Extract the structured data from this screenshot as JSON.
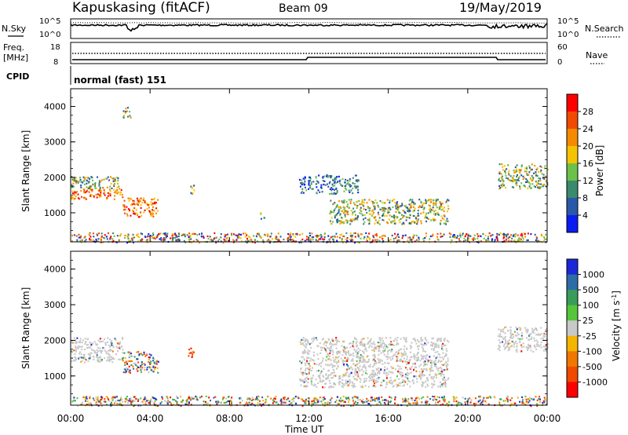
{
  "header": {
    "site": "Kapuskasing (fitACF)",
    "beam": "Beam 09",
    "date": "19/May/2019"
  },
  "noise_panel": {
    "left_label": "N.Sky",
    "right_label": "N.Search",
    "left_ticks": [
      "10^5",
      "10^0"
    ],
    "right_ticks": [
      "10^5",
      "10^0"
    ]
  },
  "freq_panel": {
    "left_label_1": "Freq.",
    "left_label_2": "[MHz]",
    "left_ticks": [
      "18",
      "8"
    ],
    "right_label": "Nave",
    "right_ticks": [
      "60",
      "0"
    ]
  },
  "cpid_panel": {
    "label": "CPID",
    "value": "normal (fast) 151"
  },
  "x_axis": {
    "label": "Time UT",
    "ticks": [
      "00:00",
      "04:00",
      "08:00",
      "12:00",
      "16:00",
      "20:00",
      "00:00"
    ]
  },
  "chart_data": [
    {
      "type": "heatmap",
      "name": "Power",
      "ylabel": "Slant Range [km]",
      "ylim": [
        180,
        4500
      ],
      "y_ticks": [
        1000,
        2000,
        3000,
        4000
      ],
      "xlim_hours": [
        0,
        24
      ],
      "colorbar": {
        "label": "Power [dB]",
        "ticks": [
          "28",
          "24",
          "20",
          "16",
          "12",
          "8",
          "4"
        ],
        "colors": [
          "#ff0000",
          "#f24a00",
          "#f58a00",
          "#f5c400",
          "#6cc14a",
          "#3a8a6e",
          "#2a58a8",
          "#0a1cf0"
        ]
      },
      "regions": [
        {
          "t": [
            0.0,
            2.6
          ],
          "r": [
            1400,
            1700
          ],
          "level": "high"
        },
        {
          "t": [
            0.0,
            2.4
          ],
          "r": [
            1700,
            2050
          ],
          "level": "mid"
        },
        {
          "t": [
            2.6,
            4.4
          ],
          "r": [
            900,
            1450
          ],
          "level": "high"
        },
        {
          "t": [
            2.6,
            3.0
          ],
          "r": [
            3700,
            4000
          ],
          "level": "mid"
        },
        {
          "t": [
            5.9,
            6.2
          ],
          "r": [
            1550,
            1800
          ],
          "level": "mid"
        },
        {
          "t": [
            9.5,
            9.8
          ],
          "r": [
            850,
            1050
          ],
          "level": "mid"
        },
        {
          "t": [
            11.5,
            14.5
          ],
          "r": [
            1550,
            2100
          ],
          "level": "low"
        },
        {
          "t": [
            13.0,
            19.0
          ],
          "r": [
            700,
            1400
          ],
          "level": "mid"
        },
        {
          "t": [
            21.5,
            24.0
          ],
          "r": [
            1700,
            2400
          ],
          "level": "mid"
        },
        {
          "t": [
            0.0,
            24.0
          ],
          "r": [
            180,
            450
          ],
          "level": "mixed"
        }
      ]
    },
    {
      "type": "heatmap",
      "name": "Velocity",
      "ylabel": "Slant Range [km]",
      "ylim": [
        180,
        4500
      ],
      "y_ticks": [
        1000,
        2000,
        3000,
        4000
      ],
      "xlim_hours": [
        0,
        24
      ],
      "colorbar": {
        "label": "Velocity [m s-1]",
        "ticks": [
          "1000",
          "500",
          "100",
          "25",
          "-25",
          "-100",
          "-500",
          "-1000"
        ],
        "colors": [
          "#1a28d8",
          "#2e6ca8",
          "#3a9c5a",
          "#55c63a",
          "#c8c8c8",
          "#f5b400",
          "#f07800",
          "#ef4a00",
          "#ff0000"
        ]
      },
      "regions": [
        {
          "t": [
            0.0,
            2.6
          ],
          "r": [
            1400,
            2100
          ],
          "level": "ground"
        },
        {
          "t": [
            2.6,
            4.4
          ],
          "r": [
            1100,
            1700
          ],
          "level": "mixed"
        },
        {
          "t": [
            5.9,
            6.2
          ],
          "r": [
            1550,
            1800
          ],
          "level": "negative"
        },
        {
          "t": [
            11.5,
            19.0
          ],
          "r": [
            700,
            2100
          ],
          "level": "ground"
        },
        {
          "t": [
            21.5,
            24.0
          ],
          "r": [
            1700,
            2400
          ],
          "level": "ground"
        },
        {
          "t": [
            0.0,
            24.0
          ],
          "r": [
            180,
            450
          ],
          "level": "mixed"
        }
      ]
    }
  ]
}
